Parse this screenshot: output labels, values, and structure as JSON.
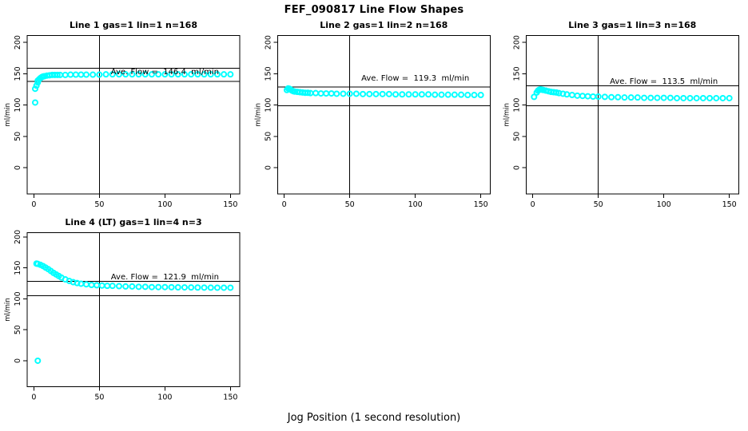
{
  "figure": {
    "title": "FEF_090817  Line Flow Shapes",
    "xlabel": "Jog Position (1 second resolution)",
    "ylabel": "ml/min",
    "point_color": "#00ffff",
    "axis_color": "#000000",
    "background_color": "#ffffff"
  },
  "chart_data": [
    {
      "type": "scatter",
      "title": "Line 1 gas=1 lin=1 n=168",
      "annotation": "Ave. Flow =  146.4  ml/min",
      "ave_flow": 146.4,
      "upper_line": 159,
      "lower_line": 138,
      "vline_x": 50,
      "xticks": [
        0,
        50,
        100,
        150
      ],
      "yticks": [
        0,
        50,
        100,
        150,
        200
      ],
      "xlim": [
        -5.1,
        157.1
      ],
      "ylim": [
        -42,
        211
      ],
      "ylabel": "ml/min",
      "points": [
        [
          1,
          104
        ],
        [
          1,
          126
        ],
        [
          2,
          131
        ],
        [
          3,
          136
        ],
        [
          3,
          139
        ],
        [
          4,
          141
        ],
        [
          5,
          143
        ],
        [
          6,
          144.5
        ],
        [
          7,
          145.5
        ],
        [
          8,
          146
        ],
        [
          10,
          147
        ],
        [
          12,
          147.5
        ],
        [
          14,
          148
        ],
        [
          16,
          148
        ],
        [
          18,
          148
        ],
        [
          20,
          148
        ],
        [
          24,
          148
        ],
        [
          28,
          148.5
        ],
        [
          32,
          148.5
        ],
        [
          36,
          148.5
        ],
        [
          40,
          148.5
        ],
        [
          45,
          148.5
        ],
        [
          50,
          148.5
        ],
        [
          55,
          149
        ],
        [
          60,
          149
        ],
        [
          65,
          149
        ],
        [
          70,
          149
        ],
        [
          75,
          149
        ],
        [
          80,
          149
        ],
        [
          85,
          149
        ],
        [
          90,
          149
        ],
        [
          95,
          149
        ],
        [
          100,
          149
        ],
        [
          105,
          149
        ],
        [
          110,
          149
        ],
        [
          115,
          149
        ],
        [
          120,
          149
        ],
        [
          125,
          149
        ],
        [
          130,
          149
        ],
        [
          135,
          149
        ],
        [
          140,
          149
        ],
        [
          145,
          149
        ],
        [
          150,
          149
        ]
      ]
    },
    {
      "type": "scatter",
      "title": "Line 2 gas=1 lin=2 n=168",
      "annotation": "Ave. Flow =  119.3  ml/min",
      "ave_flow": 119.3,
      "upper_line": 129,
      "lower_line": 99,
      "vline_x": 50,
      "xticks": [
        0,
        50,
        100,
        150
      ],
      "yticks": [
        0,
        50,
        100,
        150,
        200
      ],
      "xlim": [
        -5.1,
        157.1
      ],
      "ylim": [
        -42,
        211
      ],
      "ylabel": "ml/min",
      "points": [
        [
          2,
          124
        ],
        [
          3,
          126.5
        ],
        [
          4,
          126
        ],
        [
          5,
          124.5
        ],
        [
          6,
          123
        ],
        [
          7,
          122
        ],
        [
          8,
          121.5
        ],
        [
          10,
          121
        ],
        [
          12,
          120.5
        ],
        [
          14,
          120
        ],
        [
          16,
          119.5
        ],
        [
          18,
          119.5
        ],
        [
          20,
          119
        ],
        [
          24,
          119
        ],
        [
          28,
          118.5
        ],
        [
          32,
          118.5
        ],
        [
          36,
          118.5
        ],
        [
          40,
          118
        ],
        [
          45,
          118
        ],
        [
          50,
          118
        ],
        [
          55,
          118
        ],
        [
          60,
          117.5
        ],
        [
          65,
          117.5
        ],
        [
          70,
          117.5
        ],
        [
          75,
          117.5
        ],
        [
          80,
          117.5
        ],
        [
          85,
          117
        ],
        [
          90,
          117
        ],
        [
          95,
          117
        ],
        [
          100,
          117
        ],
        [
          105,
          117
        ],
        [
          110,
          117
        ],
        [
          115,
          116.5
        ],
        [
          120,
          116.5
        ],
        [
          125,
          116.5
        ],
        [
          130,
          116.5
        ],
        [
          135,
          116.5
        ],
        [
          140,
          116
        ],
        [
          145,
          116
        ],
        [
          150,
          116
        ]
      ]
    },
    {
      "type": "scatter",
      "title": "Line 3 gas=1 lin=3 n=168",
      "annotation": "Ave. Flow =  113.5  ml/min",
      "ave_flow": 113.5,
      "upper_line": 131,
      "lower_line": 99,
      "vline_x": 50,
      "xticks": [
        0,
        50,
        100,
        150
      ],
      "yticks": [
        0,
        50,
        100,
        150,
        200
      ],
      "xlim": [
        -5.1,
        157.1
      ],
      "ylim": [
        -42,
        211
      ],
      "ylabel": "ml/min",
      "points": [
        [
          1,
          113
        ],
        [
          3,
          120
        ],
        [
          4,
          123
        ],
        [
          5,
          124.5
        ],
        [
          6,
          125
        ],
        [
          7,
          124.5
        ],
        [
          8,
          124
        ],
        [
          10,
          123
        ],
        [
          12,
          122
        ],
        [
          14,
          121
        ],
        [
          16,
          120.5
        ],
        [
          18,
          120
        ],
        [
          20,
          119
        ],
        [
          23,
          118
        ],
        [
          26,
          117
        ],
        [
          30,
          116
        ],
        [
          34,
          115
        ],
        [
          38,
          114.5
        ],
        [
          42,
          114
        ],
        [
          46,
          113.5
        ],
        [
          50,
          113.5
        ],
        [
          55,
          113
        ],
        [
          60,
          112.5
        ],
        [
          65,
          112.5
        ],
        [
          70,
          112
        ],
        [
          75,
          112
        ],
        [
          80,
          112
        ],
        [
          85,
          111.5
        ],
        [
          90,
          111.5
        ],
        [
          95,
          111.5
        ],
        [
          100,
          111.5
        ],
        [
          105,
          111.5
        ],
        [
          110,
          111
        ],
        [
          115,
          111
        ],
        [
          120,
          111
        ],
        [
          125,
          111
        ],
        [
          130,
          111
        ],
        [
          135,
          111
        ],
        [
          140,
          111
        ],
        [
          145,
          111
        ],
        [
          150,
          111
        ]
      ]
    },
    {
      "type": "scatter",
      "title": "Line 4 (LT) gas=1 lin=4 n=3",
      "annotation": "Ave. Flow =  121.9  ml/min",
      "ave_flow": 121.9,
      "upper_line": 128,
      "lower_line": 105,
      "vline_x": 50,
      "xticks": [
        0,
        50,
        100,
        150
      ],
      "yticks": [
        0,
        50,
        100,
        150,
        200
      ],
      "xlim": [
        -5.1,
        157.1
      ],
      "ylim": [
        -42,
        207
      ],
      "ylabel": "ml/min",
      "points": [
        [
          2,
          157
        ],
        [
          3,
          0
        ],
        [
          3,
          156.5
        ],
        [
          5,
          155
        ],
        [
          7,
          153
        ],
        [
          9,
          150.5
        ],
        [
          11,
          148
        ],
        [
          13,
          145
        ],
        [
          15,
          142
        ],
        [
          17,
          139.5
        ],
        [
          19,
          137
        ],
        [
          21,
          134.5
        ],
        [
          24,
          131.5
        ],
        [
          27,
          129
        ],
        [
          30,
          127
        ],
        [
          33,
          125.5
        ],
        [
          36,
          124.5
        ],
        [
          40,
          123.5
        ],
        [
          44,
          122.5
        ],
        [
          48,
          122
        ],
        [
          52,
          121.5
        ],
        [
          56,
          121
        ],
        [
          60,
          121
        ],
        [
          65,
          120.5
        ],
        [
          70,
          120
        ],
        [
          75,
          120
        ],
        [
          80,
          119.5
        ],
        [
          85,
          119.5
        ],
        [
          90,
          119
        ],
        [
          95,
          119
        ],
        [
          100,
          119
        ],
        [
          105,
          118.8
        ],
        [
          110,
          118.6
        ],
        [
          115,
          118.5
        ],
        [
          120,
          118.4
        ],
        [
          125,
          118.3
        ],
        [
          130,
          118.2
        ],
        [
          135,
          118.1
        ],
        [
          140,
          118
        ],
        [
          145,
          118
        ],
        [
          150,
          118
        ]
      ]
    }
  ]
}
